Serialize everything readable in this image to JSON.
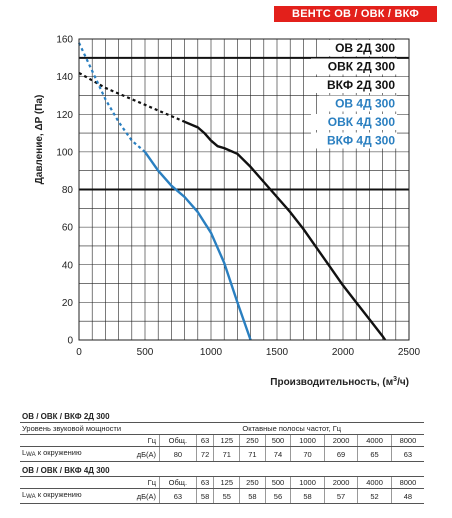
{
  "brand_label": "ВЕНТС ОВ / ОВК / ВКФ",
  "chart_data": {
    "type": "line",
    "xlabel_main": "Производительность, (м",
    "xlabel_sup": "3",
    "xlabel_end": "/ч)",
    "ylabel": "Давление, ΔP (Па)",
    "xlim": [
      0,
      2500
    ],
    "ylim": [
      0,
      160
    ],
    "x_ticks": [
      "0",
      "500",
      "1000",
      "1500",
      "2000",
      "2500"
    ],
    "y_ticks": [
      "0",
      "20",
      "40",
      "60",
      "80",
      "100",
      "120",
      "140",
      "160"
    ],
    "grid": true,
    "legend_position": "top-right",
    "reference_lines": [
      150,
      80
    ],
    "series": [
      {
        "name_group": [
          "ОВ 2Д 300",
          "ОВК 2Д 300",
          "ВКФ 2Д 300"
        ],
        "color": "#111111",
        "dashed_points": [
          [
            0,
            142
          ],
          [
            100,
            138
          ],
          [
            200,
            134
          ],
          [
            300,
            131
          ],
          [
            400,
            128
          ],
          [
            500,
            125
          ],
          [
            600,
            122
          ],
          [
            700,
            119
          ],
          [
            800,
            116
          ]
        ],
        "solid_points": [
          [
            800,
            116
          ],
          [
            900,
            113
          ],
          [
            950,
            110
          ],
          [
            1000,
            106
          ],
          [
            1050,
            103
          ],
          [
            1100,
            102
          ],
          [
            1200,
            99
          ],
          [
            1300,
            92
          ],
          [
            1400,
            84
          ],
          [
            1500,
            76
          ],
          [
            1600,
            68
          ],
          [
            1700,
            59
          ],
          [
            1800,
            49
          ],
          [
            1900,
            39
          ],
          [
            2000,
            29
          ],
          [
            2100,
            20
          ],
          [
            2200,
            11
          ],
          [
            2300,
            2
          ],
          [
            2320,
            0
          ]
        ]
      },
      {
        "name_group": [
          "ОВ 4Д 300",
          "ОВК 4Д 300",
          "ВКФ 4Д 300"
        ],
        "color": "#2a7fc0",
        "dashed_points": [
          [
            0,
            158
          ],
          [
            100,
            143
          ],
          [
            200,
            128
          ],
          [
            300,
            116
          ],
          [
            400,
            106
          ],
          [
            500,
            100
          ]
        ],
        "solid_points": [
          [
            500,
            100
          ],
          [
            600,
            90
          ],
          [
            700,
            82
          ],
          [
            800,
            76
          ],
          [
            900,
            68
          ],
          [
            1000,
            57
          ],
          [
            1100,
            41
          ],
          [
            1200,
            20
          ],
          [
            1300,
            0
          ]
        ]
      }
    ],
    "legend": [
      {
        "label": "ОВ 2Д 300",
        "color": "#111111"
      },
      {
        "label": "ОВК 2Д 300",
        "color": "#111111"
      },
      {
        "label": "ВКФ 2Д 300",
        "color": "#111111"
      },
      {
        "label": "ОВ 4Д 300",
        "color": "#2a7fc0"
      },
      {
        "label": "ОВК 4Д 300",
        "color": "#2a7fc0"
      },
      {
        "label": "ВКФ 4Д 300",
        "color": "#2a7fc0"
      }
    ]
  },
  "table1": {
    "title": "ОВ / ОВК / ВКФ 2Д 300",
    "row_sound_power": "Уровень звуковой мощности",
    "octave_header": "Октавные полосы частот, Гц",
    "hz_label": "Гц",
    "freqs": [
      "Общ.",
      "63",
      "125",
      "250",
      "500",
      "1000",
      "2000",
      "4000",
      "8000"
    ],
    "lwa_main": "L",
    "lwa_sub": "WA",
    "lwa_rest": " к окружению",
    "unit": "дБ(А)",
    "values": [
      "80",
      "72",
      "71",
      "71",
      "74",
      "70",
      "69",
      "65",
      "63"
    ]
  },
  "table2": {
    "title": "ОВ / ОВК / ВКФ 4Д 300",
    "lwa_main": "L",
    "lwa_sub": "WA",
    "lwa_rest": " к окружению",
    "unit": "дБ(А)",
    "values": [
      "63",
      "58",
      "55",
      "58",
      "56",
      "58",
      "57",
      "52",
      "48"
    ]
  }
}
